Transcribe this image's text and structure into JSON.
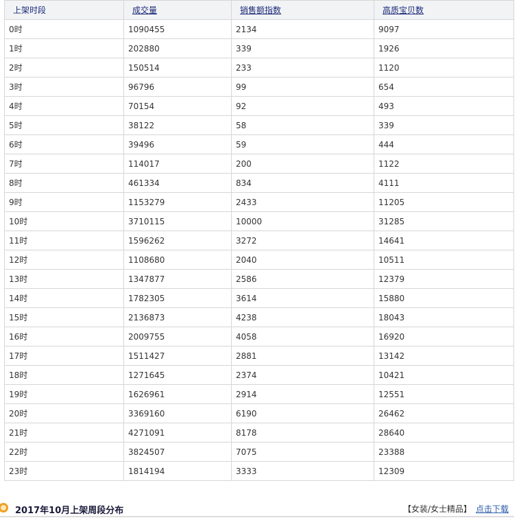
{
  "table": {
    "headers": [
      "上架时段",
      "成交量",
      "销售额指数",
      "高质宝贝数"
    ],
    "rows": [
      [
        "0时",
        "1090455",
        "2134",
        "9097"
      ],
      [
        "1时",
        "202880",
        "339",
        "1926"
      ],
      [
        "2时",
        "150514",
        "233",
        "1120"
      ],
      [
        "3时",
        "96796",
        "99",
        "654"
      ],
      [
        "4时",
        "70154",
        "92",
        "493"
      ],
      [
        "5时",
        "38122",
        "58",
        "339"
      ],
      [
        "6时",
        "39496",
        "59",
        "444"
      ],
      [
        "7时",
        "114017",
        "200",
        "1122"
      ],
      [
        "8时",
        "461334",
        "834",
        "4111"
      ],
      [
        "9时",
        "1153279",
        "2433",
        "11205"
      ],
      [
        "10时",
        "3710115",
        "10000",
        "31285"
      ],
      [
        "11时",
        "1596262",
        "3272",
        "14641"
      ],
      [
        "12时",
        "1108680",
        "2040",
        "10511"
      ],
      [
        "13时",
        "1347877",
        "2586",
        "12379"
      ],
      [
        "14时",
        "1782305",
        "3614",
        "15880"
      ],
      [
        "15时",
        "2136873",
        "4238",
        "18043"
      ],
      [
        "16时",
        "2009755",
        "4058",
        "16920"
      ],
      [
        "17时",
        "1511427",
        "2881",
        "13142"
      ],
      [
        "18时",
        "1271645",
        "2374",
        "10421"
      ],
      [
        "19时",
        "1626961",
        "2914",
        "12551"
      ],
      [
        "20时",
        "3369160",
        "6190",
        "26462"
      ],
      [
        "21时",
        "4271091",
        "8178",
        "28640"
      ],
      [
        "22时",
        "3824507",
        "7075",
        "23388"
      ],
      [
        "23时",
        "1814194",
        "3333",
        "12309"
      ]
    ]
  },
  "section": {
    "title": "2017年10月上架周段分布",
    "category": "【女装/女士精品】",
    "download": "点击下载",
    "icon": "orange-circle-icon"
  }
}
